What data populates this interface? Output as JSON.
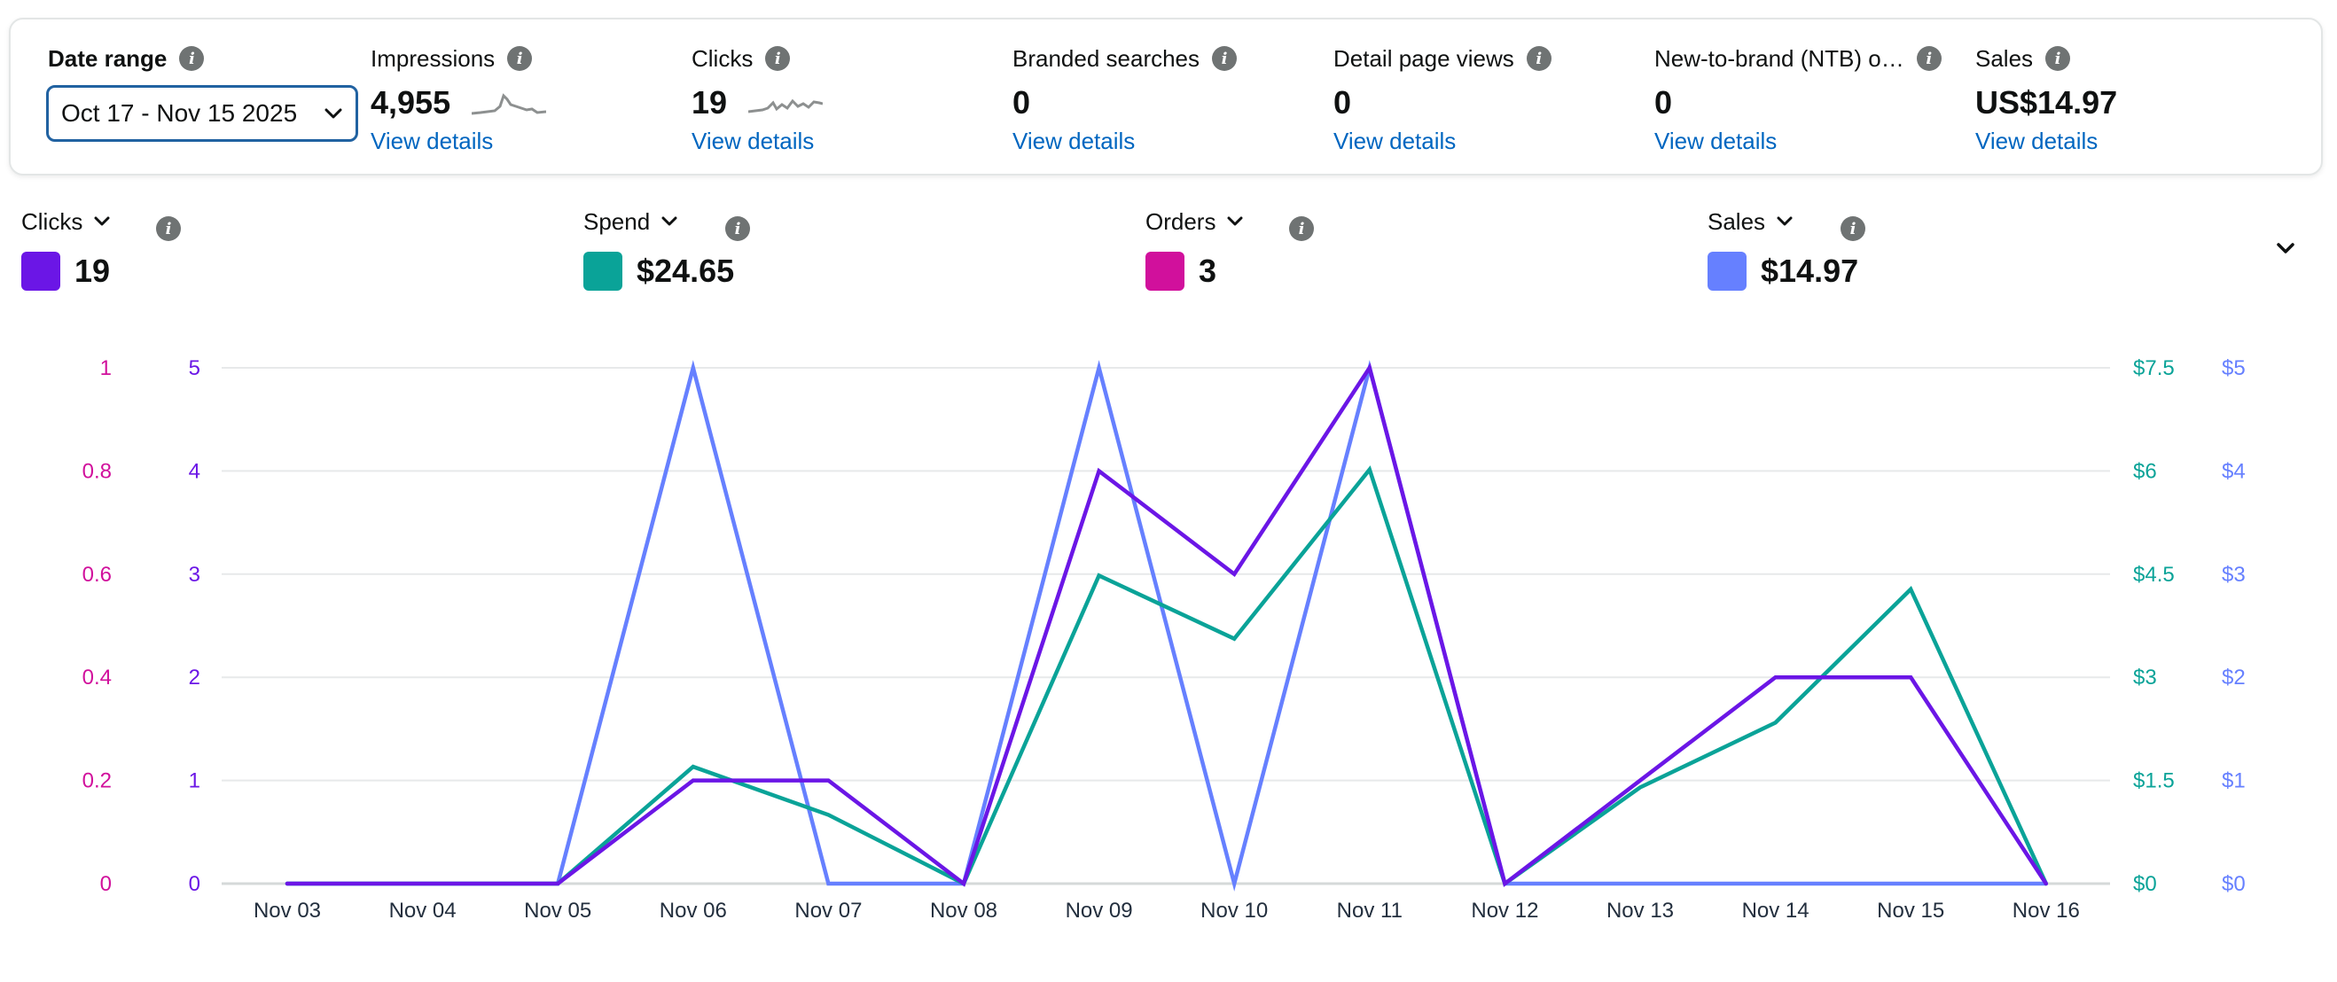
{
  "colors": {
    "clicks": "#6b16e6",
    "spend": "#0aa398",
    "orders": "#d1109c",
    "sales": "#6680ff",
    "link": "#0066c0"
  },
  "summary": {
    "date_range": {
      "label": "Date range",
      "value": "Oct 17 - Nov 15 2025"
    },
    "metrics": [
      {
        "label": "Impressions",
        "value": "4,955",
        "link": "View details",
        "sparkline": true
      },
      {
        "label": "Clicks",
        "value": "19",
        "link": "View details",
        "sparkline": true
      },
      {
        "label": "Branded searches",
        "value": "0",
        "link": "View details",
        "sparkline": false
      },
      {
        "label": "Detail page views",
        "value": "0",
        "link": "View details",
        "sparkline": false
      },
      {
        "label": "New-to-brand (NTB) o…",
        "value": "0",
        "link": "View details",
        "sparkline": false
      },
      {
        "label": "Sales",
        "value": "US$14.97",
        "link": "View details",
        "sparkline": false
      }
    ]
  },
  "series_selectors": [
    {
      "name": "Clicks",
      "total": "19",
      "color_key": "clicks"
    },
    {
      "name": "Spend",
      "total": "$24.65",
      "color_key": "spend"
    },
    {
      "name": "Orders",
      "total": "3",
      "color_key": "orders"
    },
    {
      "name": "Sales",
      "total": "$14.97",
      "color_key": "sales"
    }
  ],
  "chart_data": {
    "type": "line",
    "x": [
      "Nov 03",
      "Nov 04",
      "Nov 05",
      "Nov 06",
      "Nov 07",
      "Nov 08",
      "Nov 09",
      "Nov 10",
      "Nov 11",
      "Nov 12",
      "Nov 13",
      "Nov 14",
      "Nov 15",
      "Nov 16"
    ],
    "axes": {
      "orders": {
        "side": "left",
        "ticks": [
          "0",
          "0.2",
          "0.4",
          "0.6",
          "0.8",
          "1"
        ],
        "range": [
          0,
          1
        ]
      },
      "clicks": {
        "side": "left",
        "ticks": [
          "0",
          "1",
          "2",
          "3",
          "4",
          "5"
        ],
        "range": [
          0,
          5
        ]
      },
      "spend": {
        "side": "right",
        "ticks": [
          "$0",
          "$1.5",
          "$3",
          "$4.5",
          "$6",
          "$7.5"
        ],
        "range": [
          0,
          7.5
        ]
      },
      "sales": {
        "side": "right",
        "ticks": [
          "$0",
          "$1",
          "$2",
          "$3",
          "$4",
          "$5"
        ],
        "range": [
          0,
          5
        ]
      }
    },
    "series": [
      {
        "name": "Sales",
        "axis": "sales",
        "values": [
          0,
          0,
          0,
          5,
          0,
          0,
          5,
          0,
          5,
          0,
          0,
          0,
          0,
          0
        ]
      },
      {
        "name": "Spend",
        "axis": "spend",
        "values": [
          0,
          0,
          0,
          1.7,
          1.0,
          0,
          4.48,
          3.56,
          6.02,
          0,
          1.4,
          2.34,
          4.28,
          0
        ]
      },
      {
        "name": "Clicks",
        "axis": "clicks",
        "values": [
          0,
          0,
          0,
          1,
          1,
          0,
          4,
          3,
          5,
          0,
          1,
          2,
          2,
          0
        ]
      }
    ],
    "grid": true,
    "legend": "top"
  }
}
